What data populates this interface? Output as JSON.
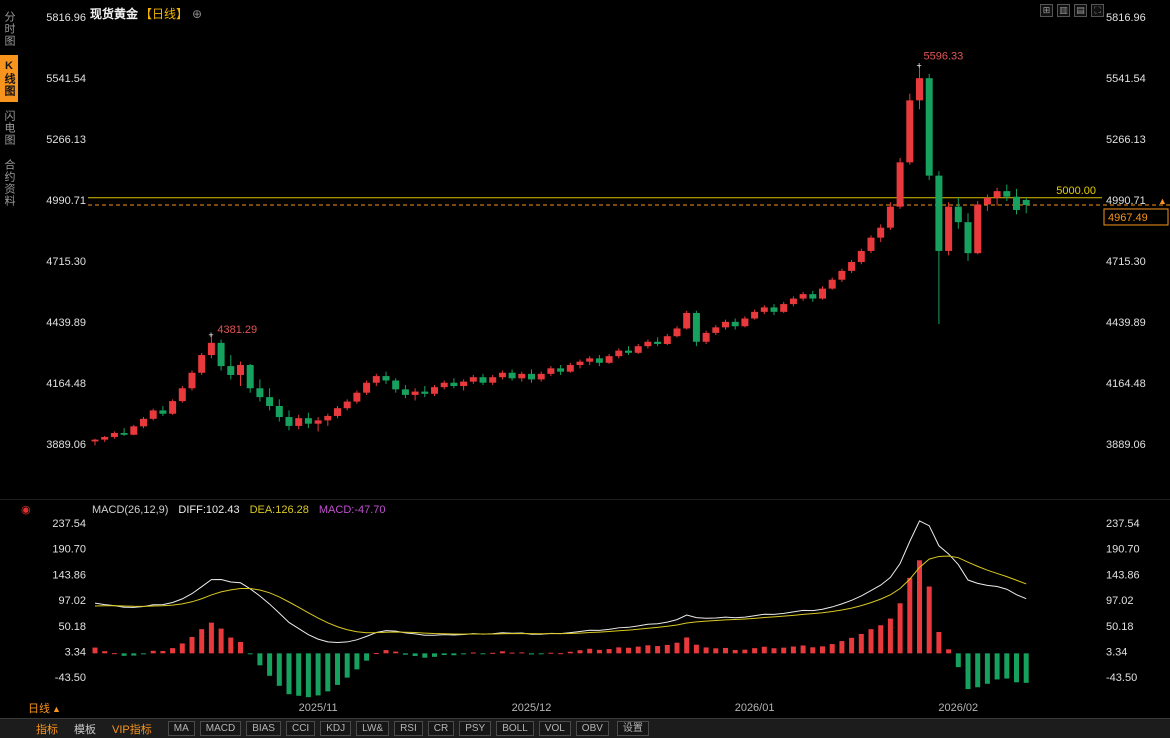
{
  "app": {
    "title": "现货黄金",
    "period_tag": "【日线】",
    "add_icon": "⊕"
  },
  "sidebar": {
    "items": [
      {
        "label": "分时图"
      },
      {
        "label": "K线图"
      },
      {
        "label": "闪电图"
      },
      {
        "label": "合约资料"
      }
    ]
  },
  "topright": {
    "icons": [
      {
        "name": "layout-grid-icon",
        "glyph": "⊞"
      },
      {
        "name": "layout-columns-icon",
        "glyph": "▥"
      },
      {
        "name": "layout-rows-icon",
        "glyph": "▤"
      },
      {
        "name": "fullscreen-icon",
        "glyph": "⛶"
      }
    ]
  },
  "chart_data": {
    "type": "candlestick",
    "title": "现货黄金【日线】",
    "y_axis_labels": [
      "5816.96",
      "5541.54",
      "5266.13",
      "4990.71",
      "4715.30",
      "4439.89",
      "4164.48",
      "3889.06"
    ],
    "macd_axis_labels": [
      "237.54",
      "190.70",
      "143.86",
      "97.02",
      "50.18",
      "3.34",
      "-43.50"
    ],
    "x_ticks": [
      {
        "label": "2025/11",
        "index": 23
      },
      {
        "label": "2025/12",
        "index": 45
      },
      {
        "label": "2026/01",
        "index": 68
      },
      {
        "label": "2026/02",
        "index": 89
      }
    ],
    "annotations": {
      "high_label": "5596.33",
      "high_index": 85,
      "peak_label": "4381.29",
      "peak_index": 12,
      "hline_value": "5000.00",
      "last_price": "4967.49"
    },
    "colors": {
      "up": "#e8393d",
      "down": "#16a15f",
      "hline": "#d8c100",
      "accent": "#f7941d",
      "marker": "#e05555"
    },
    "macd_header": {
      "params": "MACD(26,12,9)",
      "diff": "DIFF:102.43",
      "dea": "DEA:126.28",
      "macd": "MACD:-47.70"
    },
    "candles": [
      [
        3900,
        3912,
        3882,
        3908
      ],
      [
        3908,
        3925,
        3898,
        3920
      ],
      [
        3920,
        3945,
        3912,
        3938
      ],
      [
        3938,
        3960,
        3925,
        3930
      ],
      [
        3930,
        3975,
        3928,
        3968
      ],
      [
        3968,
        4010,
        3960,
        4002
      ],
      [
        4002,
        4048,
        3995,
        4040
      ],
      [
        4040,
        4060,
        4015,
        4025
      ],
      [
        4025,
        4090,
        4020,
        4082
      ],
      [
        4082,
        4150,
        4075,
        4140
      ],
      [
        4140,
        4220,
        4130,
        4210
      ],
      [
        4210,
        4300,
        4200,
        4290
      ],
      [
        4290,
        4381.29,
        4275,
        4345
      ],
      [
        4345,
        4360,
        4220,
        4240
      ],
      [
        4240,
        4290,
        4180,
        4200
      ],
      [
        4200,
        4260,
        4150,
        4245
      ],
      [
        4245,
        4250,
        4120,
        4140
      ],
      [
        4140,
        4180,
        4080,
        4100
      ],
      [
        4100,
        4140,
        4040,
        4060
      ],
      [
        4060,
        4090,
        3990,
        4010
      ],
      [
        4010,
        4040,
        3950,
        3970
      ],
      [
        3970,
        4020,
        3955,
        4005
      ],
      [
        4005,
        4030,
        3960,
        3980
      ],
      [
        3980,
        4010,
        3945,
        3995
      ],
      [
        3995,
        4025,
        3970,
        4015
      ],
      [
        4015,
        4060,
        4005,
        4050
      ],
      [
        4050,
        4090,
        4040,
        4080
      ],
      [
        4080,
        4130,
        4070,
        4120
      ],
      [
        4120,
        4175,
        4110,
        4165
      ],
      [
        4165,
        4205,
        4150,
        4195
      ],
      [
        4195,
        4215,
        4160,
        4175
      ],
      [
        4175,
        4185,
        4120,
        4135
      ],
      [
        4135,
        4155,
        4095,
        4110
      ],
      [
        4110,
        4140,
        4085,
        4125
      ],
      [
        4125,
        4150,
        4100,
        4115
      ],
      [
        4115,
        4155,
        4105,
        4145
      ],
      [
        4145,
        4175,
        4135,
        4165
      ],
      [
        4165,
        4185,
        4140,
        4150
      ],
      [
        4150,
        4180,
        4130,
        4170
      ],
      [
        4170,
        4200,
        4160,
        4190
      ],
      [
        4190,
        4205,
        4155,
        4165
      ],
      [
        4165,
        4200,
        4155,
        4190
      ],
      [
        4190,
        4220,
        4180,
        4210
      ],
      [
        4210,
        4225,
        4175,
        4185
      ],
      [
        4185,
        4215,
        4170,
        4205
      ],
      [
        4205,
        4225,
        4165,
        4180
      ],
      [
        4180,
        4215,
        4170,
        4205
      ],
      [
        4205,
        4240,
        4195,
        4230
      ],
      [
        4230,
        4245,
        4200,
        4215
      ],
      [
        4215,
        4255,
        4210,
        4245
      ],
      [
        4245,
        4270,
        4230,
        4260
      ],
      [
        4260,
        4285,
        4245,
        4275
      ],
      [
        4275,
        4290,
        4240,
        4255
      ],
      [
        4255,
        4295,
        4250,
        4285
      ],
      [
        4285,
        4320,
        4275,
        4310
      ],
      [
        4310,
        4330,
        4290,
        4300
      ],
      [
        4300,
        4340,
        4295,
        4330
      ],
      [
        4330,
        4360,
        4320,
        4350
      ],
      [
        4350,
        4370,
        4330,
        4340
      ],
      [
        4340,
        4385,
        4335,
        4375
      ],
      [
        4375,
        4420,
        4370,
        4410
      ],
      [
        4410,
        4490,
        4405,
        4480
      ],
      [
        4480,
        4490,
        4330,
        4350
      ],
      [
        4350,
        4400,
        4340,
        4390
      ],
      [
        4390,
        4425,
        4380,
        4415
      ],
      [
        4415,
        4450,
        4405,
        4440
      ],
      [
        4440,
        4455,
        4405,
        4420
      ],
      [
        4420,
        4465,
        4415,
        4455
      ],
      [
        4455,
        4495,
        4450,
        4485
      ],
      [
        4485,
        4515,
        4475,
        4505
      ],
      [
        4505,
        4520,
        4470,
        4485
      ],
      [
        4485,
        4530,
        4480,
        4520
      ],
      [
        4520,
        4555,
        4510,
        4545
      ],
      [
        4545,
        4575,
        4535,
        4565
      ],
      [
        4565,
        4580,
        4530,
        4545
      ],
      [
        4545,
        4600,
        4540,
        4590
      ],
      [
        4590,
        4640,
        4585,
        4630
      ],
      [
        4630,
        4680,
        4620,
        4670
      ],
      [
        4670,
        4720,
        4660,
        4710
      ],
      [
        4710,
        4770,
        4700,
        4760
      ],
      [
        4760,
        4830,
        4750,
        4820
      ],
      [
        4820,
        4880,
        4800,
        4865
      ],
      [
        4865,
        4980,
        4855,
        4960
      ],
      [
        4960,
        5180,
        4950,
        5160
      ],
      [
        5160,
        5470,
        5150,
        5440
      ],
      [
        5440,
        5596.33,
        5400,
        5540
      ],
      [
        5540,
        5560,
        5080,
        5100
      ],
      [
        5100,
        5120,
        4430,
        4760
      ],
      [
        4760,
        4980,
        4740,
        4960
      ],
      [
        4960,
        5000,
        4860,
        4890
      ],
      [
        4890,
        4930,
        4715,
        4750
      ],
      [
        4750,
        4985,
        4745,
        4970
      ],
      [
        4970,
        5015,
        4940,
        5000
      ],
      [
        5000,
        5045,
        4965,
        5030
      ],
      [
        5030,
        5060,
        4985,
        5005
      ],
      [
        5005,
        5040,
        4925,
        4945
      ],
      [
        4990,
        5000,
        4930,
        4967.49
      ]
    ]
  },
  "bottom": {
    "period": "日线",
    "arrow": "▲",
    "tabs": [
      {
        "label": "指标",
        "accent": true
      },
      {
        "label": "模板",
        "accent": false
      },
      {
        "label": "VIP指标",
        "accent": true
      }
    ],
    "indicators": [
      "MA",
      "MACD",
      "BIAS",
      "CCI",
      "KDJ",
      "LW&",
      "RSI",
      "CR",
      "PSY",
      "BOLL",
      "VOL",
      "OBV"
    ],
    "settings": "设置"
  }
}
